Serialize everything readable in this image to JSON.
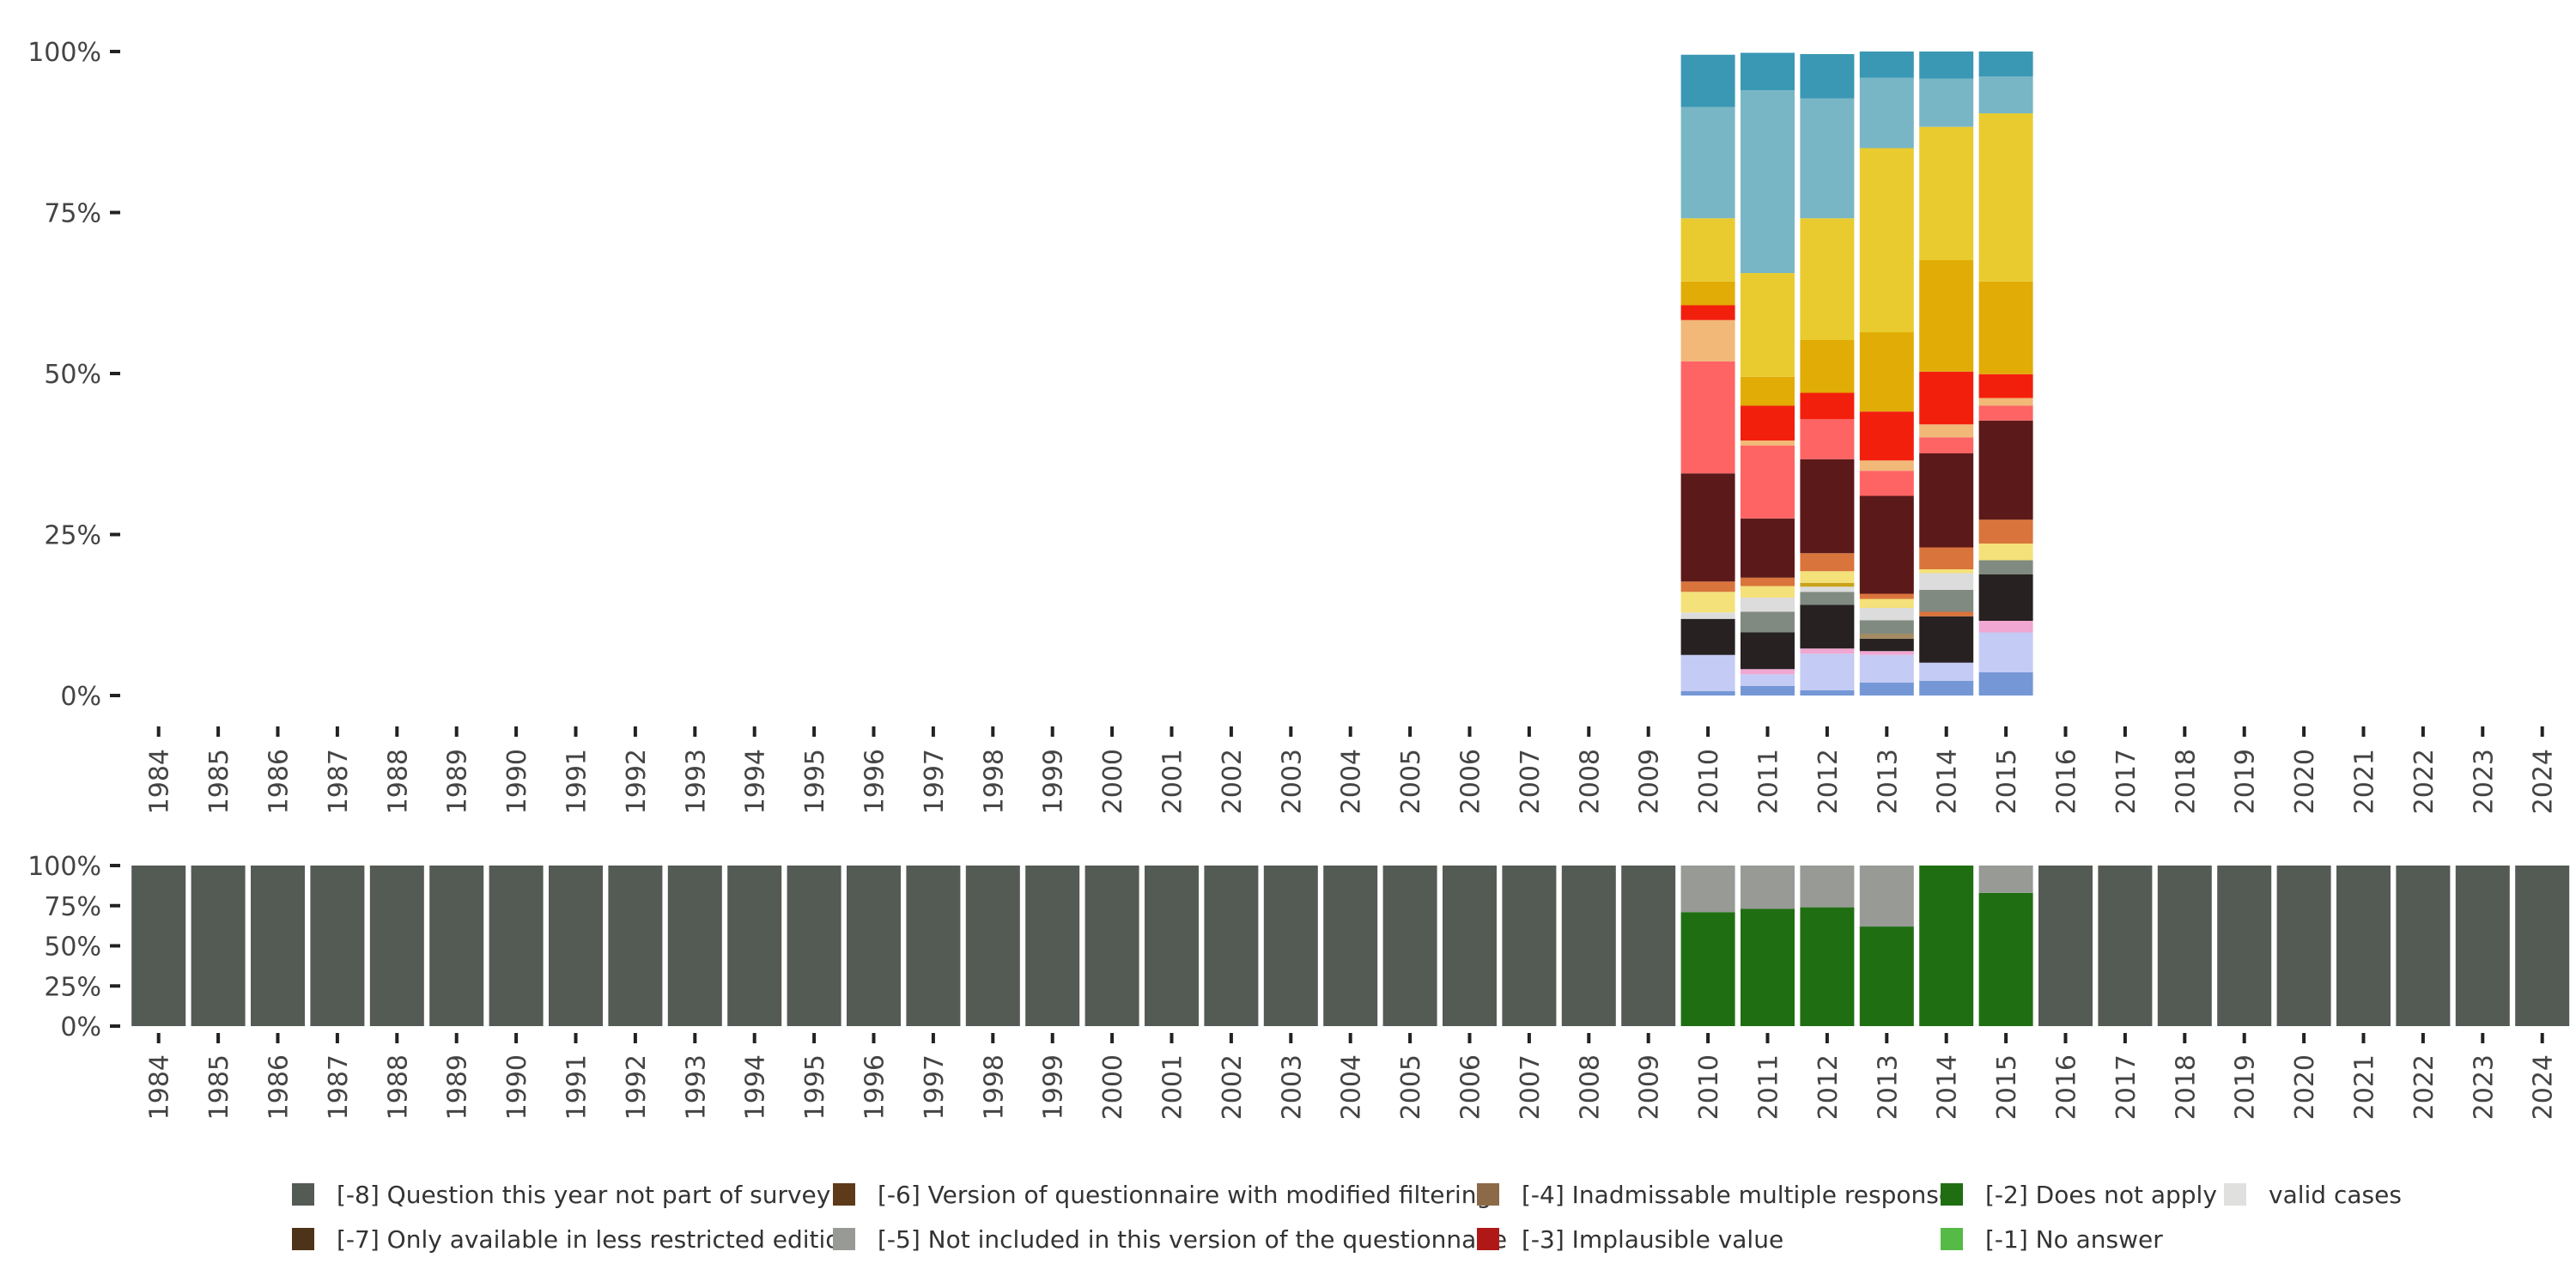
{
  "chart_data": [
    {
      "type": "bar",
      "stacked": true,
      "name": "valid-cases-distribution",
      "years": [
        "1984",
        "1985",
        "1986",
        "1987",
        "1988",
        "1989",
        "1990",
        "1991",
        "1992",
        "1993",
        "1994",
        "1995",
        "1996",
        "1997",
        "1998",
        "1999",
        "2000",
        "2001",
        "2002",
        "2003",
        "2004",
        "2005",
        "2006",
        "2007",
        "2008",
        "2009",
        "2010",
        "2011",
        "2012",
        "2013",
        "2014",
        "2015",
        "2016",
        "2017",
        "2018",
        "2019",
        "2020",
        "2021",
        "2022",
        "2023",
        "2024"
      ],
      "y_ticks": [
        "0%",
        "25%",
        "50%",
        "75%",
        "100%"
      ],
      "ylim": [
        0,
        100
      ],
      "bars": [
        {
          "year": "2010",
          "segments": [
            {
              "color": "#7697d6",
              "value": 0.7
            },
            {
              "color": "#c4cbf5",
              "value": 5.6
            },
            {
              "color": "#272121",
              "value": 5.6
            },
            {
              "color": "#dcdcdc",
              "value": 1.0
            },
            {
              "color": "#f4e17a",
              "value": 3.2
            },
            {
              "color": "#d9743c",
              "value": 1.6
            },
            {
              "color": "#5c1919",
              "value": 16.8
            },
            {
              "color": "#ff6464",
              "value": 17.4
            },
            {
              "color": "#f1b878",
              "value": 6.4
            },
            {
              "color": "#f31f0d",
              "value": 2.3
            },
            {
              "color": "#e1ac06",
              "value": 3.7
            },
            {
              "color": "#e9cb2f",
              "value": 9.8
            },
            {
              "color": "#79b6c5",
              "value": 17.3
            },
            {
              "color": "#3a98b4",
              "value": 8.1
            }
          ]
        },
        {
          "year": "2011",
          "segments": [
            {
              "color": "#7697d6",
              "value": 1.5
            },
            {
              "color": "#c4cbf5",
              "value": 1.8
            },
            {
              "color": "#f0a7d1",
              "value": 0.8
            },
            {
              "color": "#272121",
              "value": 5.7
            },
            {
              "color": "#808a80",
              "value": 3.2
            },
            {
              "color": "#dcdcdc",
              "value": 2.2
            },
            {
              "color": "#f4e17a",
              "value": 1.8
            },
            {
              "color": "#d9743c",
              "value": 1.3
            },
            {
              "color": "#5c1919",
              "value": 9.2
            },
            {
              "color": "#ff6464",
              "value": 11.3
            },
            {
              "color": "#f1b878",
              "value": 0.8
            },
            {
              "color": "#f31f0d",
              "value": 5.4
            },
            {
              "color": "#e1ac06",
              "value": 4.5
            },
            {
              "color": "#e9cb2f",
              "value": 16.1
            },
            {
              "color": "#79b6c5",
              "value": 28.4
            },
            {
              "color": "#3a98b4",
              "value": 5.8
            }
          ]
        },
        {
          "year": "2012",
          "segments": [
            {
              "color": "#7697d6",
              "value": 0.8
            },
            {
              "color": "#c4cbf5",
              "value": 5.7
            },
            {
              "color": "#f0a7d1",
              "value": 0.8
            },
            {
              "color": "#272121",
              "value": 6.8
            },
            {
              "color": "#808a80",
              "value": 2.0
            },
            {
              "color": "#dcdcdc",
              "value": 0.8
            },
            {
              "color": "#c9a21a",
              "value": 0.6
            },
            {
              "color": "#f4e17a",
              "value": 1.8
            },
            {
              "color": "#d9743c",
              "value": 2.8
            },
            {
              "color": "#5c1919",
              "value": 14.6
            },
            {
              "color": "#ff6464",
              "value": 6.2
            },
            {
              "color": "#f31f0d",
              "value": 4.1
            },
            {
              "color": "#e1ac06",
              "value": 8.2
            },
            {
              "color": "#e9cb2f",
              "value": 18.9
            },
            {
              "color": "#79b6c5",
              "value": 18.6
            },
            {
              "color": "#3a98b4",
              "value": 6.9
            }
          ]
        },
        {
          "year": "2013",
          "segments": [
            {
              "color": "#7697d6",
              "value": 2.0
            },
            {
              "color": "#c4cbf5",
              "value": 4.3
            },
            {
              "color": "#f0a7d1",
              "value": 0.6
            },
            {
              "color": "#272121",
              "value": 1.9
            },
            {
              "color": "#a38b64",
              "value": 0.8
            },
            {
              "color": "#808a80",
              "value": 2.1
            },
            {
              "color": "#dcdcdc",
              "value": 1.9
            },
            {
              "color": "#f4e17a",
              "value": 1.4
            },
            {
              "color": "#d9743c",
              "value": 0.8
            },
            {
              "color": "#5c1919",
              "value": 15.2
            },
            {
              "color": "#ff6464",
              "value": 3.9
            },
            {
              "color": "#f1b878",
              "value": 1.6
            },
            {
              "color": "#f31f0d",
              "value": 7.6
            },
            {
              "color": "#e1ac06",
              "value": 12.3
            },
            {
              "color": "#e9cb2f",
              "value": 28.6
            },
            {
              "color": "#79b6c5",
              "value": 10.9
            },
            {
              "color": "#3a98b4",
              "value": 4.1
            }
          ]
        },
        {
          "year": "2014",
          "segments": [
            {
              "color": "#7697d6",
              "value": 2.3
            },
            {
              "color": "#c4cbf5",
              "value": 2.8
            },
            {
              "color": "#272121",
              "value": 7.2
            },
            {
              "color": "#d9743c",
              "value": 0.7
            },
            {
              "color": "#808a80",
              "value": 3.4
            },
            {
              "color": "#dcdcdc",
              "value": 2.6
            },
            {
              "color": "#f4e17a",
              "value": 0.6
            },
            {
              "color": "#d9743c",
              "value": 3.4
            },
            {
              "color": "#5c1919",
              "value": 14.6
            },
            {
              "color": "#ff6464",
              "value": 2.5
            },
            {
              "color": "#f1b878",
              "value": 2.0
            },
            {
              "color": "#f31f0d",
              "value": 8.2
            },
            {
              "color": "#e1ac06",
              "value": 17.3
            },
            {
              "color": "#e9cb2f",
              "value": 20.7
            },
            {
              "color": "#79b6c5",
              "value": 7.5
            },
            {
              "color": "#3a98b4",
              "value": 4.2
            }
          ]
        },
        {
          "year": "2015",
          "segments": [
            {
              "color": "#7697d6",
              "value": 3.6
            },
            {
              "color": "#c4cbf5",
              "value": 6.2
            },
            {
              "color": "#f0a7d1",
              "value": 1.8
            },
            {
              "color": "#272121",
              "value": 7.2
            },
            {
              "color": "#808a80",
              "value": 2.2
            },
            {
              "color": "#f4e17a",
              "value": 2.6
            },
            {
              "color": "#d9743c",
              "value": 3.7
            },
            {
              "color": "#5c1919",
              "value": 15.4
            },
            {
              "color": "#ff6464",
              "value": 2.3
            },
            {
              "color": "#f1b878",
              "value": 1.2
            },
            {
              "color": "#f31f0d",
              "value": 3.7
            },
            {
              "color": "#e1ac06",
              "value": 14.4
            },
            {
              "color": "#e9cb2f",
              "value": 26.1
            },
            {
              "color": "#79b6c5",
              "value": 5.7
            },
            {
              "color": "#3a98b4",
              "value": 3.9
            }
          ]
        }
      ]
    },
    {
      "type": "bar",
      "stacked": true,
      "name": "missing-codes-overview",
      "years": [
        "1984",
        "1985",
        "1986",
        "1987",
        "1988",
        "1989",
        "1990",
        "1991",
        "1992",
        "1993",
        "1994",
        "1995",
        "1996",
        "1997",
        "1998",
        "1999",
        "2000",
        "2001",
        "2002",
        "2003",
        "2004",
        "2005",
        "2006",
        "2007",
        "2008",
        "2009",
        "2010",
        "2011",
        "2012",
        "2013",
        "2014",
        "2015",
        "2016",
        "2017",
        "2018",
        "2019",
        "2020",
        "2021",
        "2022",
        "2023",
        "2024"
      ],
      "y_ticks": [
        "0%",
        "25%",
        "50%",
        "75%",
        "100%"
      ],
      "ylim": [
        0,
        100
      ],
      "default_bar": [
        {
          "code": "-8",
          "value": 100
        }
      ],
      "bars": [
        {
          "year": "2010",
          "segments": [
            {
              "code": "-2",
              "value": 71
            },
            {
              "code": "-5",
              "value": 29
            }
          ]
        },
        {
          "year": "2011",
          "segments": [
            {
              "code": "-2",
              "value": 73
            },
            {
              "code": "-5",
              "value": 27
            }
          ]
        },
        {
          "year": "2012",
          "segments": [
            {
              "code": "-2",
              "value": 74
            },
            {
              "code": "-5",
              "value": 26
            }
          ]
        },
        {
          "year": "2013",
          "segments": [
            {
              "code": "-2",
              "value": 62
            },
            {
              "code": "-5",
              "value": 38
            }
          ]
        },
        {
          "year": "2014",
          "segments": [
            {
              "code": "-2",
              "value": 100
            }
          ]
        },
        {
          "year": "2015",
          "segments": [
            {
              "code": "-2",
              "value": 83
            },
            {
              "code": "-5",
              "value": 17
            }
          ]
        }
      ]
    }
  ],
  "legend": [
    {
      "code": "-8",
      "label": "[-8] Question this year not part of survey",
      "color": "#545a54"
    },
    {
      "code": "-7",
      "label": "[-7] Only available in less restricted edition",
      "color": "#4d3319"
    },
    {
      "code": "-6",
      "label": "[-6] Version of questionnaire with modified filtering",
      "color": "#5c3a1a"
    },
    {
      "code": "-5",
      "label": "[-5] Not included in this version of the questionnaire",
      "color": "#979a95"
    },
    {
      "code": "-4",
      "label": "[-4] Inadmissable multiple response",
      "color": "#8c6a47"
    },
    {
      "code": "-3",
      "label": "[-3] Implausible value",
      "color": "#b01818"
    },
    {
      "code": "-2",
      "label": "[-2] Does not apply",
      "color": "#1f6f12"
    },
    {
      "code": "-1",
      "label": "[-1] No answer",
      "color": "#56ba46"
    },
    {
      "code": "valid",
      "label": "valid cases",
      "color": "#e0e1df"
    }
  ]
}
